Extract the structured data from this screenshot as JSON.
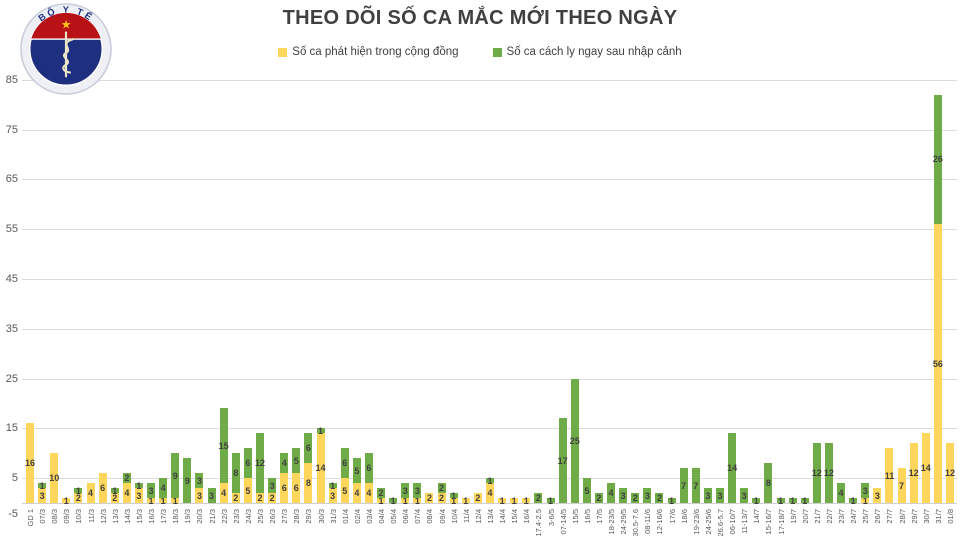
{
  "logo": {
    "top_text": "BỘ Y TẾ",
    "bottom_text": "MINISTRY OF HEALTH",
    "navy": "#1d2f7e",
    "red": "#b91216",
    "star": "#f5c518"
  },
  "title": "THEO DÕI SỐ CA MẮC MỚI THEO NGÀY",
  "legend": [
    {
      "label": "Số ca phát hiện trong cộng đồng",
      "color": "#FFD65C"
    },
    {
      "label": "Số ca cách ly ngay sau nhập cảnh",
      "color": "#6FAC47"
    }
  ],
  "chart_data": {
    "type": "bar",
    "stacked": true,
    "grid": true,
    "legend_position": "top",
    "ylim": [
      -5,
      85
    ],
    "yticks": [
      -5,
      5,
      15,
      25,
      35,
      45,
      55,
      65,
      75,
      85
    ],
    "categories": [
      "GD 1",
      "07/3",
      "08/3",
      "09/3",
      "10/3",
      "11/3",
      "12/3",
      "13/3",
      "14/3",
      "15/3",
      "16/3",
      "17/3",
      "18/3",
      "19/3",
      "20/3",
      "21/3",
      "22/3",
      "23/3",
      "24/3",
      "25/3",
      "26/3",
      "27/3",
      "28/3",
      "29/3",
      "30/3",
      "31/3",
      "01/4",
      "02/4",
      "03/4",
      "04/4",
      "05/4",
      "06/4",
      "07/4",
      "08/4",
      "09/4",
      "10/4",
      "11/4",
      "12/4",
      "13/4",
      "14/4",
      "15/4",
      "16/4",
      "17.4-2.5",
      "3-6/5",
      "07-14/5",
      "15/5",
      "16/5",
      "17/5",
      "18-23/5",
      "24-29/5",
      "30.5-7.6",
      "08-11/6",
      "12-16/6",
      "17/6",
      "18/6",
      "19-23/6",
      "24-25/6",
      "26.6-5.7",
      "06-10/7",
      "11-13/7",
      "14/7",
      "15-16/7",
      "17-18/7",
      "19/7",
      "20/7",
      "21/7",
      "22/7",
      "23/7",
      "24/7",
      "25/7",
      "26/7",
      "27/7",
      "28/7",
      "29/7",
      "30/7",
      "31/7",
      "01/8"
    ],
    "series": [
      {
        "name": "Số ca phát hiện trong cộng đồng",
        "color": "#FFD65C",
        "values": [
          16,
          3,
          10,
          1,
          2,
          4,
          6,
          2,
          4,
          3,
          1,
          1,
          1,
          0,
          3,
          0,
          4,
          2,
          5,
          2,
          2,
          6,
          6,
          8,
          14,
          3,
          5,
          4,
          4,
          1,
          0,
          1,
          1,
          2,
          2,
          1,
          1,
          2,
          4,
          1,
          1,
          1,
          0,
          0,
          0,
          0,
          0,
          0,
          0,
          0,
          0,
          0,
          0,
          0,
          0,
          0,
          0,
          0,
          0,
          0,
          0,
          0,
          0,
          0,
          0,
          0,
          0,
          0,
          0,
          1,
          3,
          11,
          7,
          12,
          14,
          56,
          12
        ]
      },
      {
        "name": "Số ca cách ly ngay sau nhập cảnh",
        "color": "#6FAC47",
        "values": [
          0,
          1,
          0,
          0,
          1,
          0,
          0,
          1,
          2,
          1,
          3,
          4,
          9,
          9,
          3,
          3,
          15,
          8,
          6,
          12,
          3,
          4,
          5,
          6,
          1,
          1,
          6,
          5,
          6,
          2,
          1,
          3,
          3,
          0,
          2,
          1,
          0,
          0,
          1,
          0,
          0,
          0,
          2,
          1,
          17,
          25,
          5,
          2,
          4,
          3,
          2,
          3,
          2,
          1,
          7,
          7,
          3,
          3,
          14,
          3,
          1,
          8,
          1,
          1,
          1,
          12,
          12,
          4,
          1,
          3,
          0,
          0,
          0,
          0,
          0,
          26,
          0
        ]
      }
    ]
  }
}
